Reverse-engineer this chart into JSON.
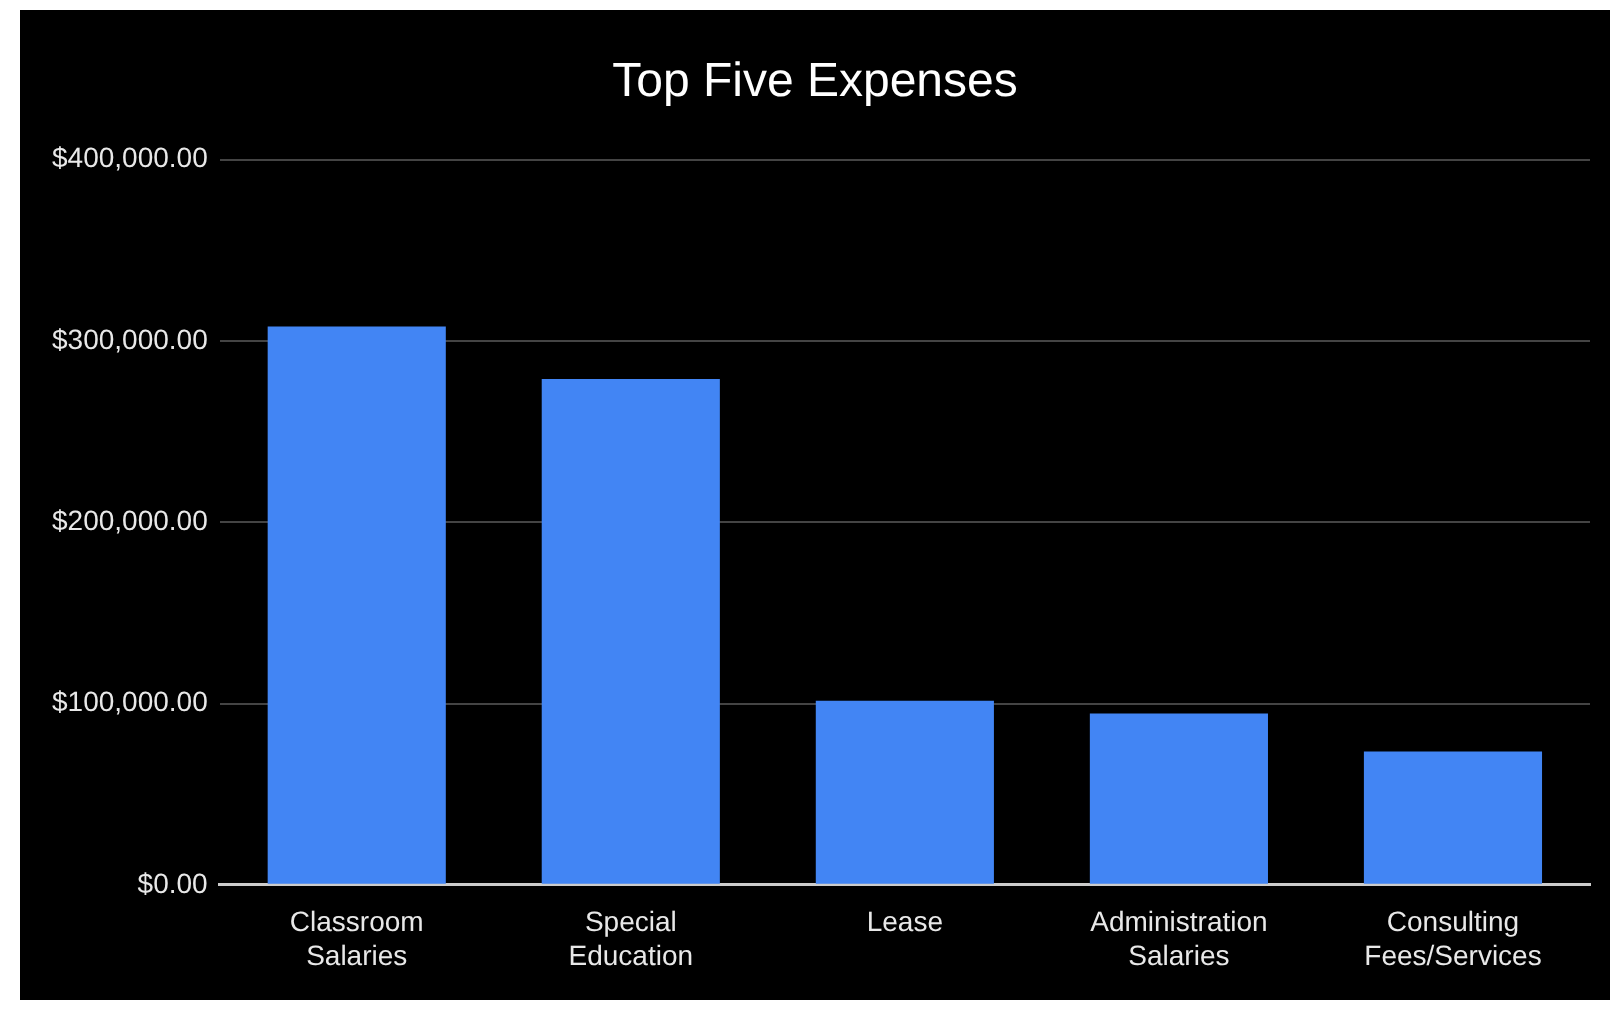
{
  "chart_data": {
    "type": "bar",
    "title": "Top Five Expenses",
    "categories": [
      "Classroom Salaries",
      "Special Education",
      "Lease",
      "Administration Salaries",
      "Consulting Fees/Services"
    ],
    "values": [
      308000,
      279000,
      101500,
      94500,
      73500
    ],
    "color": "#4285f4",
    "ylim": [
      0,
      400000
    ],
    "yticks": [
      {
        "value": 0,
        "label": "$0.00"
      },
      {
        "value": 100000,
        "label": "$100,000.00"
      },
      {
        "value": 200000,
        "label": "$200,000.00"
      },
      {
        "value": 300000,
        "label": "$300,000.00"
      },
      {
        "value": 400000,
        "label": "$400,000.00"
      }
    ],
    "grid": "y",
    "legend": false
  }
}
